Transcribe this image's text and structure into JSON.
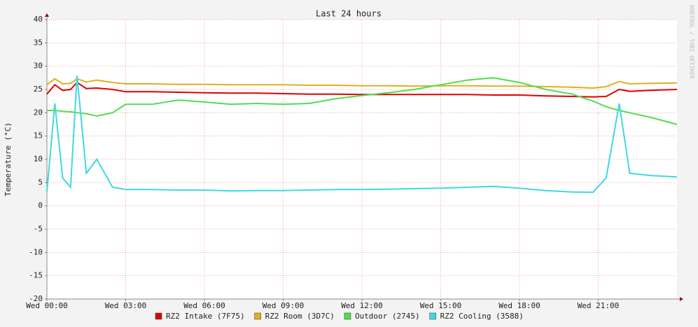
{
  "chart_data": {
    "type": "line",
    "title": "Last 24 hours",
    "y_label": "Temperature (°C)",
    "watermark": "RRDTOOL / TOBI OETIKER",
    "x": [
      0,
      0.3,
      0.6,
      0.9,
      1.15,
      1.5,
      1.9,
      2.5,
      3,
      4,
      5,
      6,
      7,
      8,
      9,
      10,
      11,
      12,
      13,
      14,
      15,
      16,
      17,
      18,
      19,
      20,
      20.8,
      21.3,
      21.8,
      22.2,
      23,
      24
    ],
    "xlim": [
      0,
      24
    ],
    "xticks": [
      {
        "value": 0,
        "label": "Wed 00:00"
      },
      {
        "value": 3,
        "label": "Wed 03:00"
      },
      {
        "value": 6,
        "label": "Wed 06:00"
      },
      {
        "value": 9,
        "label": "Wed 09:00"
      },
      {
        "value": 12,
        "label": "Wed 12:00"
      },
      {
        "value": 15,
        "label": "Wed 15:00"
      },
      {
        "value": 18,
        "label": "Wed 18:00"
      },
      {
        "value": 21,
        "label": "Wed 21:00"
      }
    ],
    "ylim": [
      -20,
      40
    ],
    "yticks": [
      -20,
      -15,
      -10,
      -5,
      0,
      5,
      10,
      15,
      20,
      25,
      30,
      35,
      40
    ],
    "grid": true,
    "series": [
      {
        "name": "RZ2 Intake (7F75)",
        "color": "#e00000",
        "values": [
          24,
          26,
          24.8,
          25,
          26.5,
          25.2,
          25.3,
          25,
          24.5,
          24.5,
          24.4,
          24.3,
          24.2,
          24.2,
          24.1,
          24,
          24,
          23.9,
          23.9,
          23.9,
          23.9,
          23.9,
          23.8,
          23.8,
          23.6,
          23.5,
          23.4,
          23.5,
          25,
          24.6,
          24.8,
          25
        ]
      },
      {
        "name": "RZ2 Room (3D7C)",
        "color": "#e0b020",
        "values": [
          26,
          27.3,
          26.2,
          26.3,
          27.3,
          26.6,
          27,
          26.5,
          26.2,
          26.2,
          26.1,
          26.1,
          26,
          26,
          26,
          25.9,
          25.9,
          25.8,
          25.8,
          25.7,
          25.8,
          25.8,
          25.7,
          25.7,
          25.6,
          25.5,
          25.3,
          25.6,
          26.7,
          26.2,
          26.3,
          26.4
        ]
      },
      {
        "name": "Outdoor (2745)",
        "color": "#50dd50",
        "values": [
          20.5,
          20.5,
          20.3,
          20.2,
          20,
          19.8,
          19.3,
          20,
          21.8,
          21.8,
          22.7,
          22.3,
          21.8,
          22,
          21.8,
          22,
          23,
          23.7,
          24.3,
          25,
          26,
          27,
          27.5,
          26.5,
          25,
          24,
          22.5,
          21.3,
          20.5,
          20,
          19,
          17.5
        ]
      },
      {
        "name": "RZ2 Cooling (3588)",
        "color": "#40d8e0",
        "values": [
          3,
          22,
          6,
          4,
          28,
          7,
          10,
          4,
          3.5,
          3.5,
          3.4,
          3.4,
          3.2,
          3.3,
          3.3,
          3.4,
          3.5,
          3.5,
          3.6,
          3.7,
          3.8,
          4,
          4.2,
          3.8,
          3.3,
          3,
          2.9,
          6,
          22,
          7,
          6.5,
          6.2
        ]
      }
    ]
  }
}
